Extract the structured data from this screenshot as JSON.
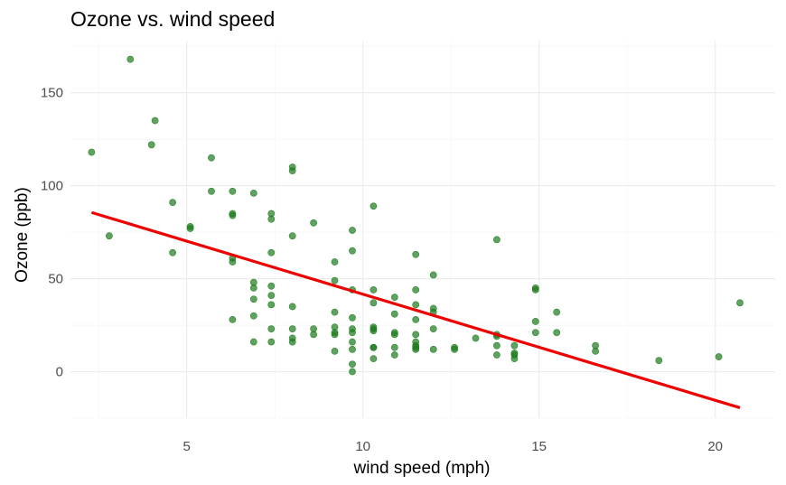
{
  "chart_data": {
    "type": "scatter",
    "title": "Ozone vs. wind speed",
    "xlabel": "wind speed (mph)",
    "ylabel": "Ozone (ppb)",
    "xlim": [
      1.7,
      21.7
    ],
    "ylim": [
      -25,
      178
    ],
    "xticks": [
      5,
      10,
      15,
      20
    ],
    "yticks": [
      0,
      50,
      100,
      150
    ],
    "grid": true,
    "point_color": "#1b7a1b",
    "line_color": "#ee0000",
    "points": [
      [
        2.3,
        118
      ],
      [
        2.8,
        73
      ],
      [
        3.4,
        168
      ],
      [
        4.0,
        122
      ],
      [
        4.1,
        135
      ],
      [
        4.6,
        91
      ],
      [
        4.6,
        64
      ],
      [
        5.1,
        78
      ],
      [
        5.1,
        77
      ],
      [
        5.7,
        115
      ],
      [
        5.7,
        97
      ],
      [
        6.3,
        97
      ],
      [
        6.3,
        85
      ],
      [
        6.3,
        84
      ],
      [
        6.3,
        61
      ],
      [
        6.3,
        59
      ],
      [
        6.3,
        28
      ],
      [
        6.9,
        96
      ],
      [
        6.9,
        48
      ],
      [
        6.9,
        45
      ],
      [
        6.9,
        39
      ],
      [
        6.9,
        30
      ],
      [
        6.9,
        16
      ],
      [
        7.4,
        85
      ],
      [
        7.4,
        82
      ],
      [
        7.4,
        64
      ],
      [
        7.4,
        46
      ],
      [
        7.4,
        41
      ],
      [
        7.4,
        36
      ],
      [
        7.4,
        23
      ],
      [
        7.4,
        16
      ],
      [
        8.0,
        110
      ],
      [
        8.0,
        108
      ],
      [
        8.0,
        73
      ],
      [
        8.0,
        35
      ],
      [
        8.0,
        23
      ],
      [
        8.0,
        18
      ],
      [
        8.0,
        16
      ],
      [
        8.6,
        80
      ],
      [
        8.6,
        23
      ],
      [
        8.6,
        20
      ],
      [
        9.2,
        59
      ],
      [
        9.2,
        49
      ],
      [
        9.2,
        32
      ],
      [
        9.2,
        24
      ],
      [
        9.2,
        21
      ],
      [
        9.2,
        20
      ],
      [
        9.2,
        11
      ],
      [
        9.7,
        76
      ],
      [
        9.7,
        65
      ],
      [
        9.7,
        44
      ],
      [
        9.7,
        29
      ],
      [
        9.7,
        23
      ],
      [
        9.7,
        21
      ],
      [
        9.7,
        16
      ],
      [
        9.7,
        12
      ],
      [
        9.7,
        4
      ],
      [
        9.7,
        0
      ],
      [
        10.3,
        89
      ],
      [
        10.3,
        44
      ],
      [
        10.3,
        37
      ],
      [
        10.3,
        24
      ],
      [
        10.3,
        23
      ],
      [
        10.3,
        22
      ],
      [
        10.3,
        13
      ],
      [
        10.3,
        13
      ],
      [
        10.3,
        7
      ],
      [
        10.9,
        40
      ],
      [
        10.9,
        31
      ],
      [
        10.9,
        21
      ],
      [
        10.9,
        20
      ],
      [
        10.9,
        13
      ],
      [
        10.9,
        9
      ],
      [
        11.5,
        63
      ],
      [
        11.5,
        44
      ],
      [
        11.5,
        36
      ],
      [
        11.5,
        28
      ],
      [
        11.5,
        20
      ],
      [
        11.5,
        16
      ],
      [
        11.5,
        14
      ],
      [
        11.5,
        13
      ],
      [
        11.5,
        12
      ],
      [
        12.0,
        52
      ],
      [
        12.0,
        34
      ],
      [
        12.0,
        32
      ],
      [
        12.0,
        23
      ],
      [
        12.0,
        12
      ],
      [
        12.6,
        13
      ],
      [
        12.6,
        12
      ],
      [
        13.2,
        18
      ],
      [
        13.8,
        71
      ],
      [
        13.8,
        20
      ],
      [
        13.8,
        19
      ],
      [
        13.8,
        14
      ],
      [
        13.8,
        9
      ],
      [
        14.3,
        14
      ],
      [
        14.3,
        10
      ],
      [
        14.3,
        9
      ],
      [
        14.3,
        7
      ],
      [
        14.9,
        45
      ],
      [
        14.9,
        44
      ],
      [
        14.9,
        27
      ],
      [
        14.9,
        21
      ],
      [
        15.5,
        32
      ],
      [
        15.5,
        21
      ],
      [
        16.6,
        14
      ],
      [
        16.6,
        11
      ],
      [
        18.4,
        6
      ],
      [
        20.1,
        8
      ],
      [
        20.7,
        37
      ]
    ],
    "fit_line": {
      "x": [
        2.3,
        20.7
      ],
      "y": [
        85.6,
        -19.4
      ]
    }
  }
}
